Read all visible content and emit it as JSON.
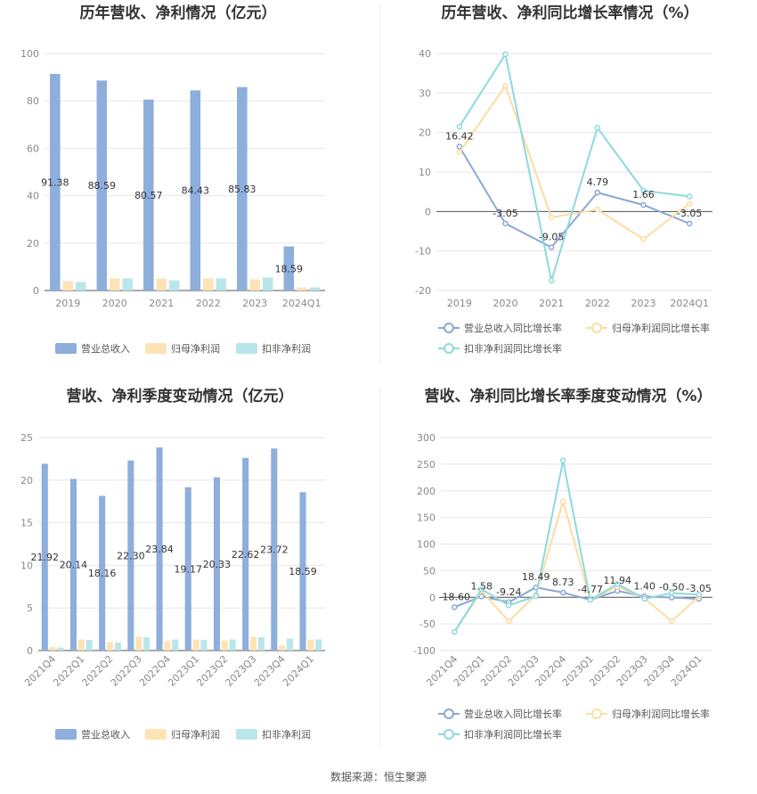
{
  "source_text": "数据来源：恒生聚源",
  "colors": {
    "revenue": "#8eaedc",
    "parent_profit": "#fde3b5",
    "nonrecurring_profit": "#b9e6ea",
    "revenue_line": "#8aa8d6",
    "parent_line": "#fbdca5",
    "nonrec_line": "#8dd9de"
  },
  "chart_data": [
    {
      "type": "bar",
      "title": "历年营收、净利情况（亿元）",
      "categories": [
        "2019",
        "2020",
        "2021",
        "2022",
        "2023",
        "2024Q1"
      ],
      "ylim": [
        0,
        100
      ],
      "yticks": [
        "0",
        "20",
        "40",
        "60",
        "80",
        "100"
      ],
      "grid": true,
      "legend_position": "bottom",
      "series": [
        {
          "name": "营业总收入",
          "values": [
            91.38,
            88.59,
            80.57,
            84.43,
            85.83,
            18.59
          ],
          "labels": [
            "91.38",
            "88.59",
            "80.57",
            "84.43",
            "85.83",
            "18.59"
          ]
        },
        {
          "name": "归母净利润",
          "values": [
            3.9,
            5.1,
            5.1,
            5.1,
            4.7,
            1.3
          ]
        },
        {
          "name": "扣非净利润",
          "values": [
            3.6,
            5.1,
            4.3,
            5.1,
            5.5,
            1.3
          ]
        }
      ]
    },
    {
      "type": "line",
      "title": "历年营收、净利同比增长率情况（%）",
      "categories": [
        "2019",
        "2020",
        "2021",
        "2022",
        "2023",
        "2024Q1"
      ],
      "ylim": [
        -20,
        40
      ],
      "yticks": [
        "-20",
        "-10",
        "0",
        "10",
        "20",
        "30",
        "40"
      ],
      "grid": true,
      "legend_position": "bottom",
      "series": [
        {
          "name": "营业总收入同比增长率",
          "values": [
            16.42,
            -3.05,
            -9.05,
            4.79,
            1.66,
            -3.05
          ],
          "labels": [
            "16.42",
            "-3.05",
            "-9.05",
            "4.79",
            "1.66",
            "-3.05"
          ]
        },
        {
          "name": "归母净利润同比增长率",
          "values": [
            15.0,
            31.8,
            -1.5,
            0.5,
            -7.0,
            2.0
          ]
        },
        {
          "name": "扣非净利润同比增长率",
          "values": [
            21.5,
            39.8,
            -17.5,
            21.2,
            5.3,
            3.8
          ]
        }
      ]
    },
    {
      "type": "bar",
      "title": "营收、净利季度变动情况（亿元）",
      "categories": [
        "2021Q4",
        "2022Q1",
        "2022Q2",
        "2022Q3",
        "2022Q4",
        "2023Q1",
        "2023Q2",
        "2023Q3",
        "2023Q4",
        "2024Q1"
      ],
      "ylim": [
        0,
        25
      ],
      "yticks": [
        "0",
        "5",
        "10",
        "15",
        "20",
        "25"
      ],
      "grid": true,
      "legend_position": "bottom",
      "series": [
        {
          "name": "营业总收入",
          "values": [
            21.92,
            20.14,
            18.16,
            22.3,
            23.84,
            19.17,
            20.33,
            22.62,
            23.72,
            18.59
          ],
          "labels": [
            "21.92",
            "20.14",
            "18.16",
            "22.30",
            "23.84",
            "19.17",
            "20.33",
            "22.62",
            "23.72",
            "18.59"
          ]
        },
        {
          "name": "归母净利润",
          "values": [
            0.4,
            1.3,
            1.0,
            1.6,
            1.1,
            1.3,
            1.2,
            1.6,
            0.6,
            1.3
          ]
        },
        {
          "name": "扣非净利润",
          "values": [
            0.35,
            1.25,
            0.95,
            1.55,
            1.3,
            1.25,
            1.3,
            1.55,
            1.4,
            1.3
          ]
        }
      ]
    },
    {
      "type": "line",
      "title": "营收、净利同比增长率季度变动情况（%）",
      "categories": [
        "2021Q4",
        "2022Q1",
        "2022Q2",
        "2022Q3",
        "2022Q4",
        "2023Q1",
        "2023Q2",
        "2023Q3",
        "2023Q4",
        "2024Q1"
      ],
      "ylim": [
        -100,
        300
      ],
      "yticks": [
        "-100",
        "-50",
        "0",
        "50",
        "100",
        "150",
        "200",
        "250",
        "300"
      ],
      "grid": true,
      "legend_position": "bottom",
      "series": [
        {
          "name": "营业总收入同比增长率",
          "values": [
            -18.6,
            1.58,
            -9.24,
            18.49,
            8.73,
            -4.77,
            11.94,
            1.4,
            -0.5,
            -3.05
          ],
          "labels": [
            "-18.60",
            "1.58",
            "-9.24",
            "18.49",
            "8.73",
            "-4.77",
            "11.94",
            "1.40",
            "-0.50",
            "-3.05"
          ]
        },
        {
          "name": "归母净利润同比增长率",
          "values": [
            -65,
            12,
            -45,
            5,
            180,
            -5,
            20,
            -2,
            -45,
            2
          ]
        },
        {
          "name": "扣非净利润同比增长率",
          "values": [
            -65,
            15,
            -15,
            2,
            257,
            -5,
            25,
            -3,
            8,
            5
          ]
        }
      ]
    }
  ]
}
